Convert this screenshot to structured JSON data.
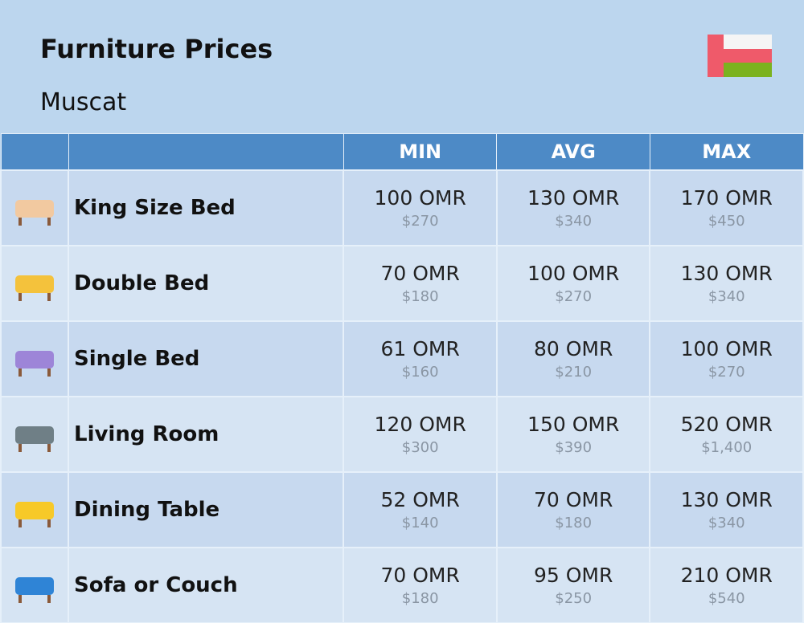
{
  "header": {
    "title": "Furniture Prices",
    "subtitle": "Muscat"
  },
  "table": {
    "columns": [
      "MIN",
      "AVG",
      "MAX"
    ],
    "rows": [
      {
        "label": "King Size Bed",
        "cells": [
          [
            "100 OMR",
            "$270"
          ],
          [
            "130 OMR",
            "$340"
          ],
          [
            "170 OMR",
            "$450"
          ]
        ]
      },
      {
        "label": "Double Bed",
        "cells": [
          [
            "70 OMR",
            "$180"
          ],
          [
            "100 OMR",
            "$270"
          ],
          [
            "130 OMR",
            "$340"
          ]
        ]
      },
      {
        "label": "Single Bed",
        "cells": [
          [
            "61 OMR",
            "$160"
          ],
          [
            "80 OMR",
            "$210"
          ],
          [
            "100 OMR",
            "$270"
          ]
        ]
      },
      {
        "label": "Living Room",
        "cells": [
          [
            "120 OMR",
            "$300"
          ],
          [
            "150 OMR",
            "$390"
          ],
          [
            "520 OMR",
            "$1,400"
          ]
        ]
      },
      {
        "label": "Dining Table",
        "cells": [
          [
            "52 OMR",
            "$140"
          ],
          [
            "70 OMR",
            "$180"
          ],
          [
            "130 OMR",
            "$340"
          ]
        ]
      },
      {
        "label": "Sofa or Couch",
        "cells": [
          [
            "70 OMR",
            "$180"
          ],
          [
            "95 OMR",
            "$250"
          ],
          [
            "210 OMR",
            "$540"
          ]
        ]
      }
    ]
  }
}
